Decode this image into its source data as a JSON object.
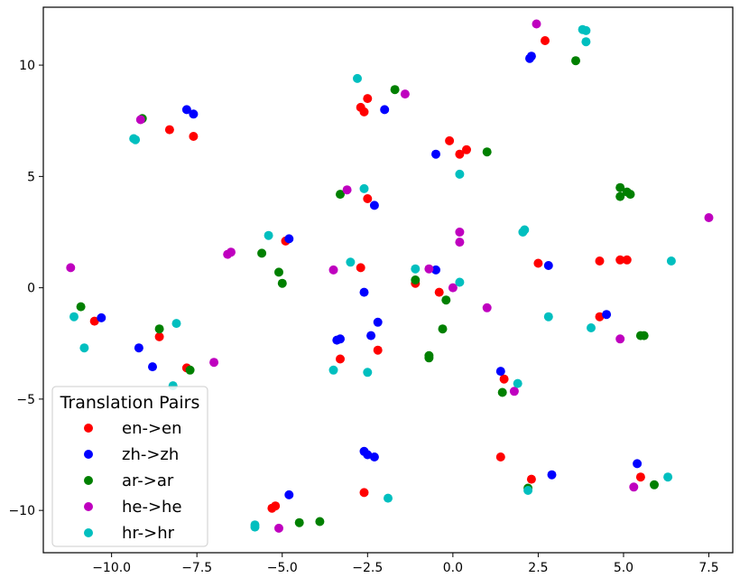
{
  "chart_data": {
    "type": "scatter",
    "title": "",
    "xlabel": "",
    "ylabel": "",
    "xlim": [
      -12,
      8.2
    ],
    "ylim": [
      -11.9,
      12.6
    ],
    "xticks": [
      -10,
      -7.5,
      -5,
      -2.5,
      0,
      2.5,
      5,
      7.5
    ],
    "xtick_labels": [
      "−10.0",
      "−7.5",
      "−5.0",
      "−2.5",
      "0.0",
      "2.5",
      "5.0",
      "7.5"
    ],
    "yticks": [
      -10,
      -5,
      0,
      5,
      10
    ],
    "ytick_labels": [
      "−10",
      "−5",
      "0",
      "5",
      "10"
    ],
    "grid": false,
    "legend": {
      "title": "Translation Pairs",
      "placement": "lower-left"
    },
    "series": [
      {
        "name": "en->en",
        "color": "#ff0000",
        "x": [
          2.7,
          -2.7,
          -2.5,
          -2.6,
          -8.3,
          -7.6,
          -0.1,
          0.4,
          0.2,
          -2.5,
          -4.9,
          -2.7,
          -1.1,
          -0.4,
          2.5,
          4.3,
          4.9,
          5.1,
          -10.5,
          -8.6,
          -7.8,
          4.3,
          -3.3,
          -2.2,
          1.5,
          1.4,
          2.3,
          5.5,
          -2.6,
          -5.2,
          -5.3
        ],
        "y": [
          11.1,
          8.1,
          8.5,
          7.9,
          7.1,
          6.8,
          6.6,
          6.2,
          6.0,
          4.0,
          2.1,
          0.9,
          0.2,
          -0.2,
          1.1,
          1.2,
          1.25,
          1.25,
          -1.5,
          -2.2,
          -3.6,
          -1.3,
          -3.2,
          -2.8,
          -4.1,
          -7.6,
          -8.6,
          -8.5,
          -9.2,
          -9.8,
          -9.9
        ]
      },
      {
        "name": "zh->zh",
        "color": "#0000ff",
        "x": [
          2.3,
          2.25,
          -7.8,
          -7.6,
          -2.0,
          -0.5,
          -2.3,
          -4.8,
          -0.5,
          -2.6,
          2.8,
          -10.3,
          -9.2,
          -8.8,
          -3.4,
          -3.3,
          -2.2,
          -2.4,
          4.5,
          1.4,
          5.4,
          2.9,
          -2.6,
          -2.5,
          -2.3,
          -4.8
        ],
        "y": [
          10.4,
          10.3,
          8.0,
          7.8,
          8.0,
          6.0,
          3.7,
          2.2,
          0.8,
          -0.2,
          1.0,
          -1.35,
          -2.7,
          -3.55,
          -2.35,
          -2.3,
          -1.55,
          -2.15,
          -1.2,
          -3.75,
          -7.9,
          -8.4,
          -7.35,
          -7.5,
          -7.6,
          -9.3
        ]
      },
      {
        "name": "ar->ar",
        "color": "#008000",
        "x": [
          3.6,
          -1.7,
          -9.1,
          1.0,
          -3.3,
          4.9,
          5.1,
          5.2,
          4.9,
          -5.6,
          -5.1,
          -5.0,
          -10.9,
          -8.6,
          -7.7,
          -1.1,
          -0.2,
          -0.3,
          -0.7,
          -0.7,
          1.45,
          5.5,
          5.6,
          2.2,
          5.9,
          -4.5,
          -3.9
        ],
        "y": [
          10.2,
          8.9,
          7.6,
          6.1,
          4.2,
          4.5,
          4.3,
          4.2,
          4.1,
          1.55,
          0.7,
          0.2,
          -0.85,
          -1.85,
          -3.7,
          0.35,
          -0.55,
          -1.85,
          -3.05,
          -3.15,
          -4.7,
          -2.15,
          -2.15,
          -9.0,
          -8.85,
          -10.55,
          -10.5
        ]
      },
      {
        "name": "he->he",
        "color": "#bf00bf",
        "x": [
          2.45,
          -1.4,
          -9.15,
          -3.1,
          7.5,
          -11.2,
          -6.6,
          -6.5,
          -3.5,
          -0.7,
          0.2,
          0.2,
          0.0,
          1.0,
          -7.0,
          4.9,
          1.8,
          5.3,
          -5.1
        ],
        "y": [
          11.85,
          8.7,
          7.55,
          4.4,
          3.15,
          0.9,
          1.5,
          1.6,
          0.8,
          0.85,
          2.5,
          2.05,
          0.0,
          -0.9,
          -3.35,
          -2.3,
          -4.65,
          -8.95,
          -10.8
        ]
      },
      {
        "name": "hr->hr",
        "color": "#00bfbf",
        "x": [
          3.9,
          3.8,
          3.9,
          -2.8,
          -9.35,
          -9.3,
          -2.6,
          0.2,
          2.1,
          2.05,
          -5.4,
          -3.0,
          -1.1,
          0.2,
          6.4,
          -11.1,
          -10.8,
          -8.1,
          -8.2,
          -3.5,
          -2.5,
          1.9,
          2.8,
          4.05,
          2.2,
          6.3,
          -1.9,
          -5.8,
          -5.8
        ],
        "y": [
          11.55,
          11.6,
          11.05,
          9.4,
          6.7,
          6.65,
          4.45,
          5.1,
          2.6,
          2.5,
          2.35,
          1.15,
          0.85,
          0.25,
          1.2,
          -1.3,
          -2.7,
          -1.6,
          -4.4,
          -3.7,
          -3.8,
          -4.3,
          -1.3,
          -1.8,
          -9.1,
          -8.5,
          -9.45,
          -10.65,
          -10.75
        ]
      }
    ]
  }
}
